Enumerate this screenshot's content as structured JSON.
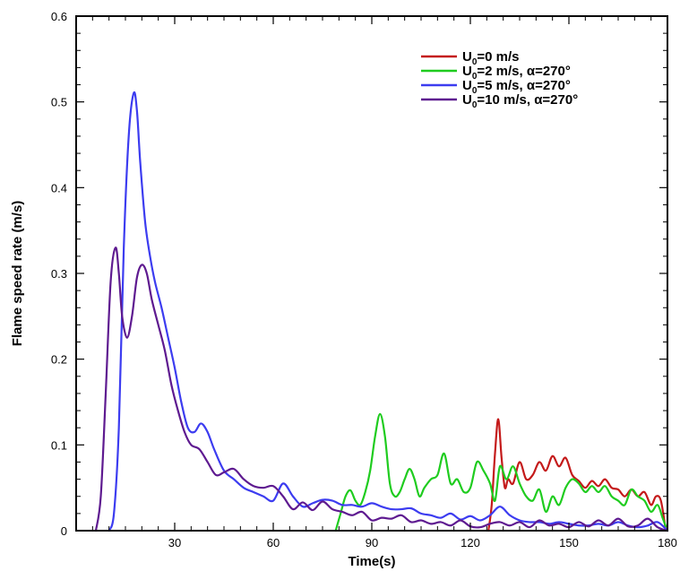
{
  "chart_data": {
    "type": "line",
    "title": "",
    "xlabel": "Time(s)",
    "ylabel": "Flame speed rate (m/s)",
    "xlim": [
      0,
      180
    ],
    "ylim": [
      0,
      0.6
    ],
    "xticks": [
      30,
      60,
      90,
      120,
      150,
      180
    ],
    "yticks": [
      0,
      0.1,
      0.2,
      0.3,
      0.4,
      0.5,
      0.6
    ],
    "xtick_labels": [
      "30",
      "60",
      "90",
      "120",
      "150",
      "180"
    ],
    "ytick_labels": [
      "0",
      "0.1",
      "0.2",
      "0.3",
      "0.4",
      "0.5",
      "0.6"
    ],
    "grid": false,
    "legend_position": "top-right",
    "series": [
      {
        "name": "U0=0   m/s",
        "legend": {
          "pre": "U",
          "sub": "0",
          "post": "=0   m/s"
        },
        "color": "#c41a1a",
        "x": [
          125.5,
          126.5,
          127.5,
          128.5,
          129.5,
          130.5,
          131.5,
          133,
          135,
          137,
          139,
          141,
          143,
          145,
          147,
          149,
          151,
          153,
          155,
          157,
          159,
          161,
          163,
          165,
          167,
          169,
          171,
          173,
          175,
          176.5,
          178,
          179.5
        ],
        "y": [
          0.0,
          0.03,
          0.09,
          0.13,
          0.085,
          0.05,
          0.06,
          0.055,
          0.08,
          0.06,
          0.065,
          0.08,
          0.07,
          0.087,
          0.075,
          0.085,
          0.065,
          0.058,
          0.05,
          0.058,
          0.052,
          0.06,
          0.05,
          0.048,
          0.04,
          0.048,
          0.04,
          0.045,
          0.03,
          0.04,
          0.035,
          0.0
        ]
      },
      {
        "name": "U0=2   m/s, α=270°",
        "legend": {
          "pre": "U",
          "sub": "0",
          "post": "=2   m/s, α=270°"
        },
        "color": "#1fcc1f",
        "x": [
          79,
          80.5,
          82,
          83.5,
          85,
          86.5,
          88,
          89.5,
          91,
          92.5,
          94,
          95.5,
          97,
          98.5,
          100,
          101.5,
          103,
          104.5,
          106,
          108,
          110,
          112,
          114,
          116,
          118,
          120,
          122,
          124,
          126,
          127.5,
          129,
          131,
          133,
          135,
          137,
          139,
          141,
          143,
          145,
          147,
          149,
          151,
          153,
          155,
          157,
          159,
          161,
          163,
          165,
          167,
          169,
          171,
          173,
          175,
          177,
          178.5,
          179.5
        ],
        "y": [
          0.0,
          0.02,
          0.04,
          0.047,
          0.035,
          0.03,
          0.045,
          0.07,
          0.11,
          0.136,
          0.11,
          0.055,
          0.04,
          0.045,
          0.06,
          0.072,
          0.06,
          0.04,
          0.05,
          0.06,
          0.065,
          0.09,
          0.055,
          0.06,
          0.045,
          0.05,
          0.08,
          0.07,
          0.055,
          0.035,
          0.075,
          0.06,
          0.075,
          0.055,
          0.04,
          0.035,
          0.048,
          0.022,
          0.04,
          0.03,
          0.05,
          0.06,
          0.055,
          0.045,
          0.052,
          0.045,
          0.052,
          0.04,
          0.035,
          0.03,
          0.048,
          0.04,
          0.035,
          0.022,
          0.03,
          0.015,
          0.005
        ]
      },
      {
        "name": "U0=5   m/s, α=270°",
        "legend": {
          "pre": "U",
          "sub": "0",
          "post": "=5   m/s, α=270°"
        },
        "color": "#3c3cf0",
        "x": [
          10,
          11.5,
          13,
          14.5,
          16,
          17.5,
          18.5,
          19.5,
          21,
          22.5,
          24,
          26,
          28,
          30,
          32,
          34,
          36,
          38,
          40,
          42,
          45,
          48,
          51,
          54,
          57,
          60,
          63,
          66,
          69,
          72,
          75,
          78,
          81,
          84,
          87,
          90,
          93,
          96,
          99,
          102,
          105,
          108,
          111,
          114,
          117,
          120,
          123,
          126,
          129,
          132,
          135,
          138,
          141,
          144,
          147,
          150,
          153,
          156,
          159,
          162,
          165,
          168,
          171,
          174,
          177,
          180
        ],
        "y": [
          0.0,
          0.02,
          0.12,
          0.33,
          0.46,
          0.51,
          0.49,
          0.43,
          0.36,
          0.32,
          0.29,
          0.26,
          0.225,
          0.19,
          0.15,
          0.12,
          0.115,
          0.125,
          0.115,
          0.095,
          0.07,
          0.06,
          0.05,
          0.045,
          0.04,
          0.035,
          0.055,
          0.04,
          0.028,
          0.032,
          0.036,
          0.035,
          0.03,
          0.03,
          0.028,
          0.032,
          0.028,
          0.025,
          0.025,
          0.026,
          0.02,
          0.018,
          0.015,
          0.02,
          0.013,
          0.017,
          0.012,
          0.018,
          0.028,
          0.018,
          0.012,
          0.01,
          0.01,
          0.008,
          0.01,
          0.008,
          0.006,
          0.006,
          0.008,
          0.006,
          0.01,
          0.006,
          0.004,
          0.006,
          0.01,
          0.0
        ]
      },
      {
        "name": "U0=10 m/s, α=270°",
        "legend": {
          "pre": "U",
          "sub": "0",
          "post": "=10 m/s, α=270°"
        },
        "color": "#5e1a90",
        "x": [
          6,
          7.5,
          9,
          10.5,
          12,
          13,
          14,
          15.5,
          17,
          18.5,
          20,
          21.5,
          23,
          25,
          27,
          29,
          31,
          33,
          35,
          37.5,
          40,
          42.5,
          45,
          48,
          51,
          54,
          57,
          60,
          63,
          66,
          69,
          72,
          75,
          78,
          81,
          84,
          87,
          90,
          93,
          96,
          99,
          102,
          105,
          108,
          111,
          114,
          117,
          120,
          123,
          126,
          129,
          132,
          135,
          138,
          141,
          144,
          147,
          150,
          153,
          156,
          159,
          162,
          165,
          168,
          171,
          174,
          177,
          180
        ],
        "y": [
          0.0,
          0.04,
          0.16,
          0.29,
          0.33,
          0.3,
          0.25,
          0.225,
          0.25,
          0.295,
          0.31,
          0.3,
          0.27,
          0.24,
          0.21,
          0.17,
          0.14,
          0.115,
          0.1,
          0.095,
          0.08,
          0.065,
          0.068,
          0.072,
          0.06,
          0.052,
          0.05,
          0.052,
          0.04,
          0.025,
          0.033,
          0.024,
          0.034,
          0.025,
          0.022,
          0.018,
          0.022,
          0.012,
          0.015,
          0.014,
          0.018,
          0.01,
          0.012,
          0.008,
          0.01,
          0.006,
          0.012,
          0.005,
          0.004,
          0.008,
          0.01,
          0.006,
          0.01,
          0.004,
          0.012,
          0.006,
          0.008,
          0.004,
          0.01,
          0.005,
          0.012,
          0.006,
          0.014,
          0.005,
          0.006,
          0.014,
          0.004,
          0.0
        ]
      }
    ]
  }
}
